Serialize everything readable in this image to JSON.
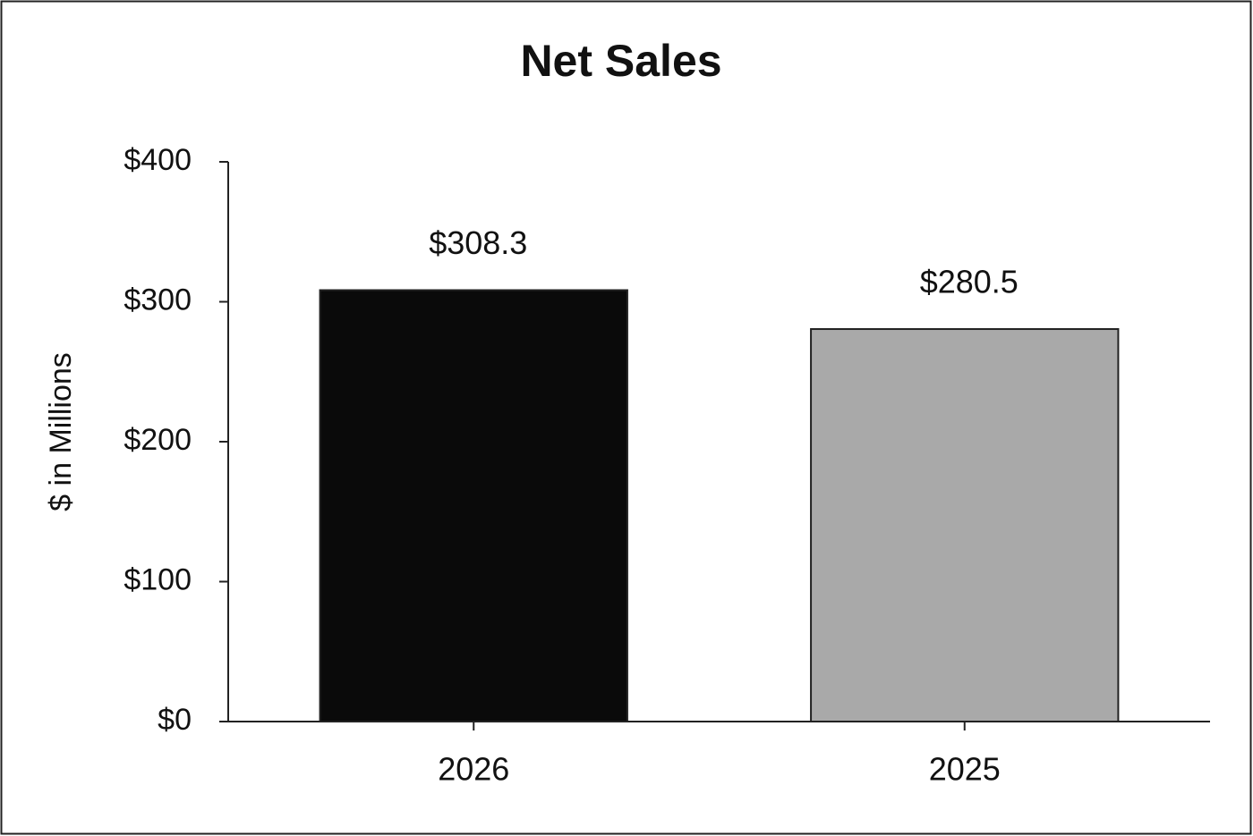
{
  "chart_data": {
    "type": "bar",
    "title": "Net Sales",
    "y_label": "$ in Millions",
    "categories": [
      "2026",
      "2025"
    ],
    "values": [
      308.3,
      280.5
    ],
    "value_labels": [
      "$308.3",
      "$280.5"
    ],
    "colors": [
      "#0a0a0a",
      "#a9a9a9"
    ],
    "ylim": [
      0,
      400
    ],
    "yticks": [
      {
        "value": 0,
        "label": "$0"
      },
      {
        "value": 100,
        "label": "$100"
      },
      {
        "value": 200,
        "label": "$200"
      },
      {
        "value": 300,
        "label": "$300"
      },
      {
        "value": 400,
        "label": "$400"
      }
    ],
    "grid": false
  }
}
